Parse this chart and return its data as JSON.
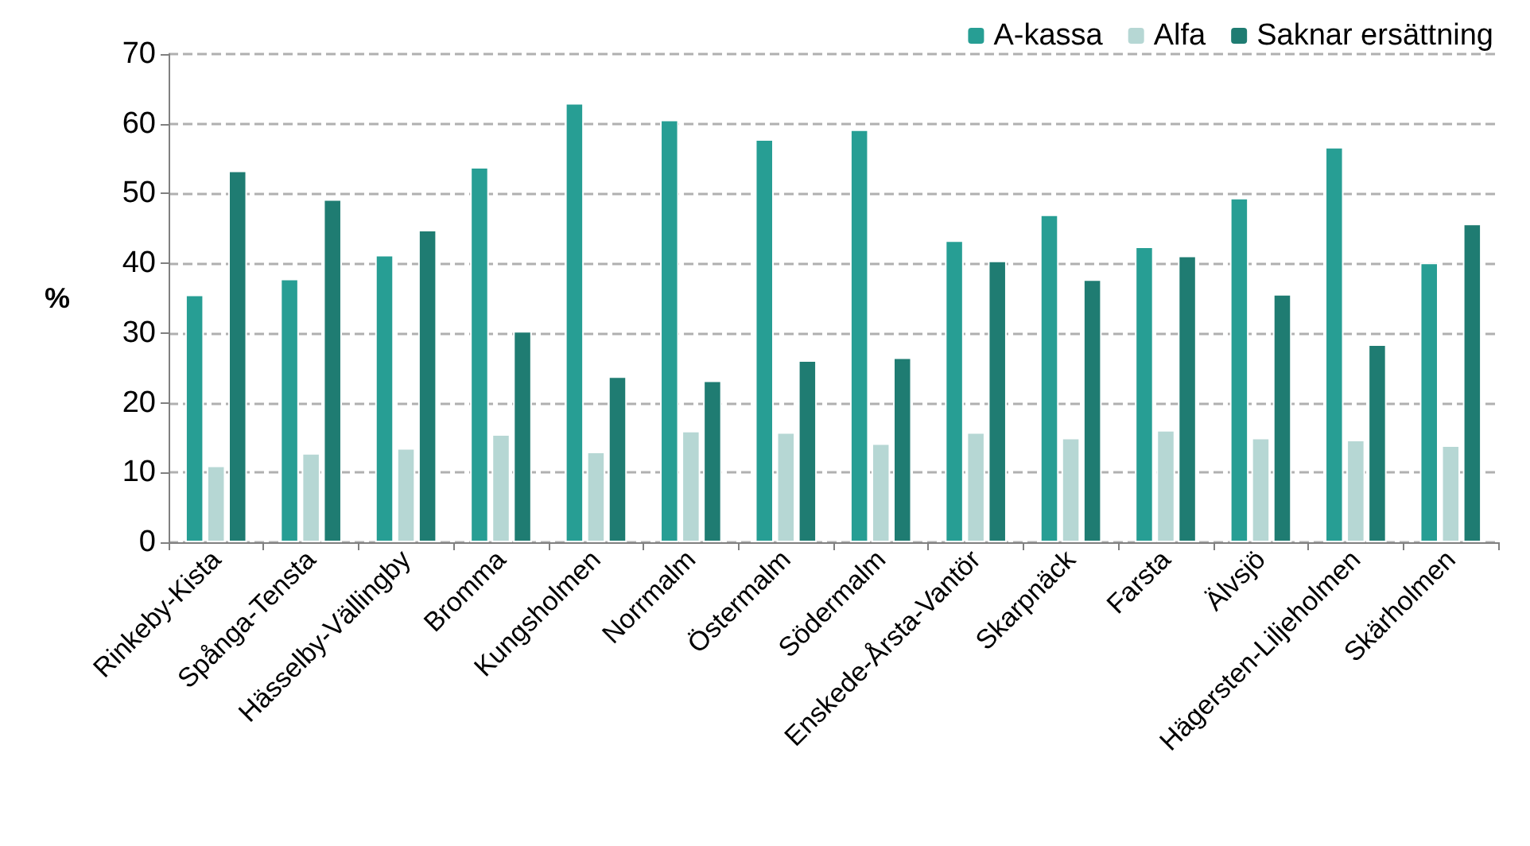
{
  "chart_data": {
    "type": "bar",
    "ylabel": "%",
    "categories": [
      "Rinkeby-Kista",
      "Spånga-Tensta",
      "Hässelby-Vällingby",
      "Bromma",
      "Kungsholmen",
      "Norrmalm",
      "Östermalm",
      "Södermalm",
      "Enskede-Årsta-Vantör",
      "Skarpnäck",
      "Farsta",
      "Älvsjö",
      "Hägersten-Liljeholmen",
      "Skärholmen"
    ],
    "series": [
      {
        "name": "A-kassa",
        "color": "#279e94",
        "values": [
          35.5,
          37.8,
          41.2,
          53.8,
          63,
          60.6,
          57.8,
          59.2,
          43.3,
          47,
          42.4,
          49.4,
          56.7,
          40.1
        ]
      },
      {
        "name": "Alfa",
        "color": "#b6d7d4",
        "values": [
          11,
          12.8,
          13.5,
          15.5,
          13,
          16,
          15.8,
          14.2,
          15.8,
          15,
          16.1,
          15,
          14.7,
          13.9
        ]
      },
      {
        "name": "Saknar ersättning",
        "color": "#1f7c72",
        "values": [
          53.3,
          49.2,
          44.8,
          30.3,
          23.8,
          23.2,
          26.1,
          26.5,
          40.4,
          37.7,
          41.1,
          35.6,
          28.4,
          45.7
        ]
      }
    ],
    "ylim": [
      0,
      70
    ],
    "yticks": [
      0,
      10,
      20,
      30,
      40,
      50,
      60,
      70
    ],
    "grid": "y",
    "legend": "top right"
  }
}
